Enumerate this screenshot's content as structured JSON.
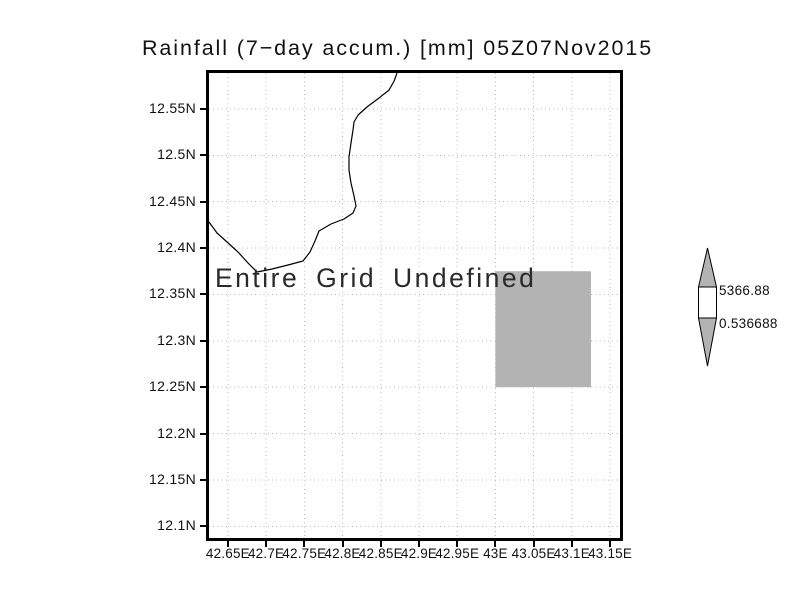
{
  "title": "Rainfall (7−day accum.) [mm] 05Z07Nov2015",
  "annotation": "Entire Grid Undefined",
  "colorbar": {
    "top_label": "5366.88",
    "bottom_label": "0.536688",
    "arrow_fill": "#b3b3b3",
    "box_fill": "#ffffff"
  },
  "colors": {
    "background": "#ffffff",
    "frame": "#000000",
    "gridline": "#b9b9b9",
    "coastline": "#000000",
    "shaded_cell": "#b3b3b3",
    "text": "#111111"
  },
  "chart_data": {
    "type": "map",
    "title": "Rainfall (7−day accum.) [mm] 05Z07Nov2015",
    "grid": "dotted",
    "legend_position": "right",
    "x_axis": {
      "values": [
        42.65,
        42.7,
        42.75,
        42.8,
        42.85,
        42.9,
        42.95,
        43,
        43.05,
        43.1,
        43.15
      ],
      "labels": [
        "42.65E",
        "42.7E",
        "42.75E",
        "42.8E",
        "42.85E",
        "42.9E",
        "42.95E",
        "43E",
        "43.05E",
        "43.1E",
        "43.15E"
      ]
    },
    "y_axis": {
      "values": [
        12.55,
        12.5,
        12.45,
        12.4,
        12.35,
        12.3,
        12.25,
        12.2,
        12.15,
        12.1
      ],
      "labels": [
        "12.55N",
        "12.5N",
        "12.45N",
        "12.4N",
        "12.35N",
        "12.3N",
        "12.25N",
        "12.2N",
        "12.15N",
        "12.1N"
      ]
    },
    "lon_range": [
      42.6253,
      43.163
    ],
    "lat_range": [
      12.0874,
      12.5887
    ],
    "shaded_cell": {
      "lon": [
        43.0,
        43.125
      ],
      "lat": [
        12.25,
        12.375
      ]
    },
    "annotation": "Entire Grid Undefined",
    "colorbar": {
      "min": 0.536688,
      "max": 5366.88
    },
    "coastline_lonlat": [
      [
        42.6253,
        12.4281
      ],
      [
        42.6358,
        12.4162
      ],
      [
        42.6489,
        12.4065
      ],
      [
        42.6632,
        12.3957
      ],
      [
        42.6763,
        12.3839
      ],
      [
        42.6881,
        12.3742
      ],
      [
        42.7077,
        12.3774
      ],
      [
        42.7287,
        12.3817
      ],
      [
        42.7483,
        12.386
      ],
      [
        42.7574,
        12.3957
      ],
      [
        42.764,
        12.4076
      ],
      [
        42.7692,
        12.4184
      ],
      [
        42.7849,
        12.4259
      ],
      [
        42.8019,
        12.4313
      ],
      [
        42.8137,
        12.4378
      ],
      [
        42.8176,
        12.4453
      ],
      [
        42.815,
        12.4561
      ],
      [
        42.8111,
        12.4701
      ],
      [
        42.8085,
        12.4841
      ],
      [
        42.8085,
        12.4981
      ],
      [
        42.8111,
        12.5132
      ],
      [
        42.8137,
        12.5272
      ],
      [
        42.815,
        12.5359
      ],
      [
        42.8203,
        12.5434
      ],
      [
        42.832,
        12.552
      ],
      [
        42.8477,
        12.5617
      ],
      [
        42.8608,
        12.5703
      ],
      [
        42.8674,
        12.5801
      ],
      [
        42.8713,
        12.5887
      ]
    ]
  }
}
